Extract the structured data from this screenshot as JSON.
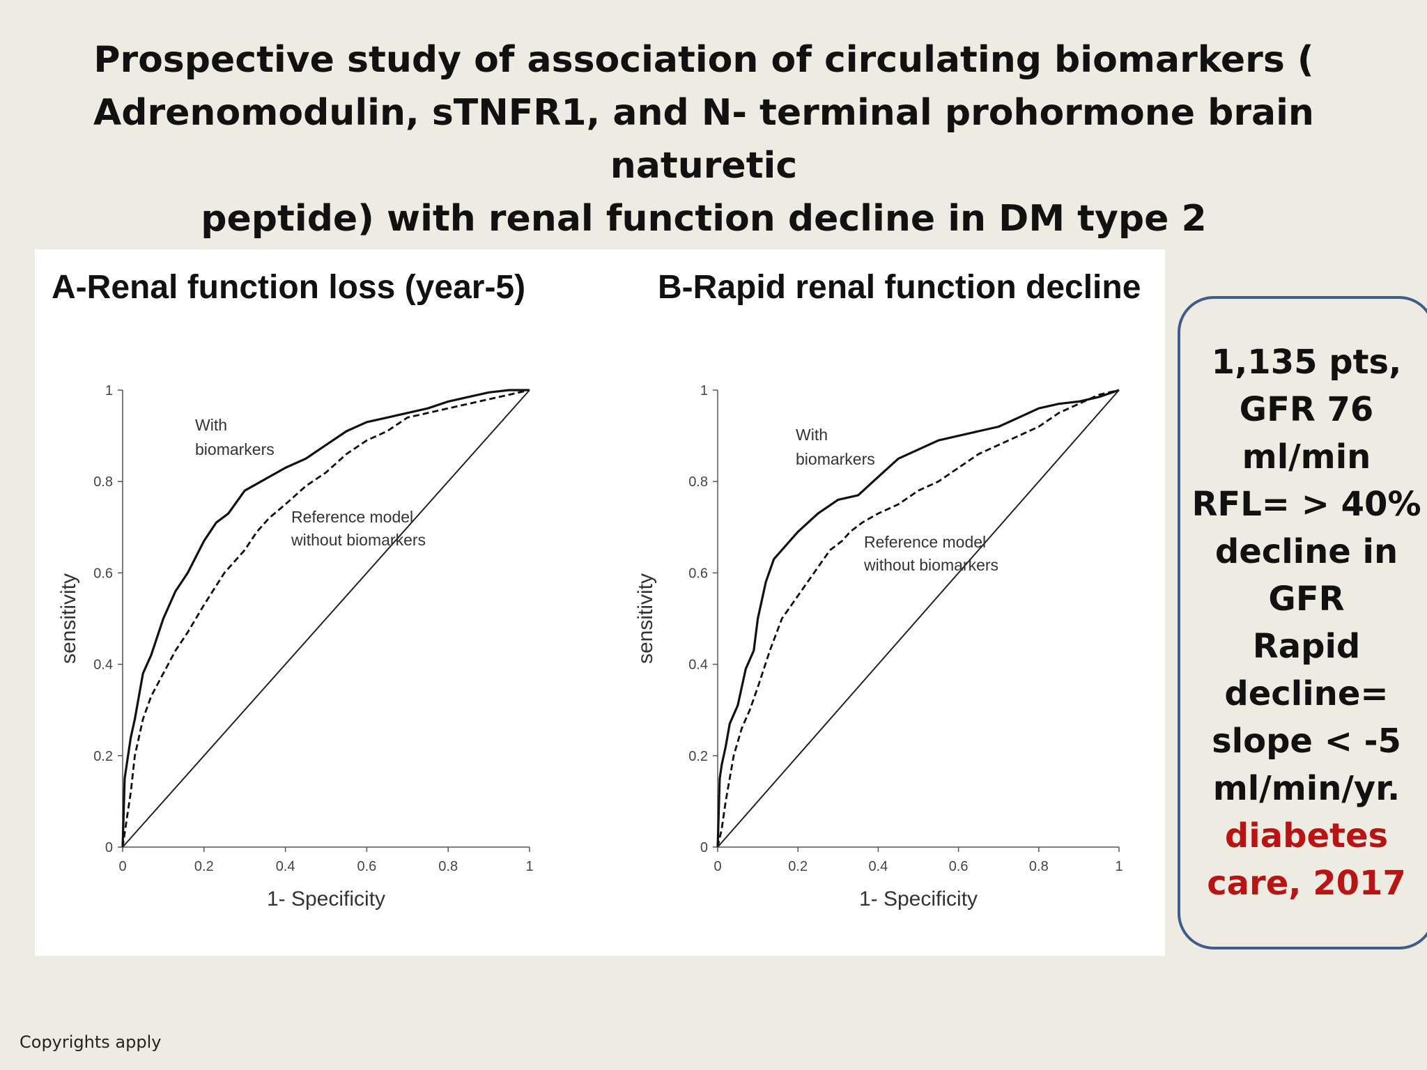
{
  "title_lines": [
    "Prospective study of association of circulating biomarkers (",
    "Adrenomodulin, sTNFR1, and N- terminal prohormone brain naturetic",
    "peptide) with renal function decline in DM type 2"
  ],
  "info_box": {
    "lines": [
      "1,135 pts,",
      "GFR 76",
      "ml/min",
      "RFL= > 40%",
      "decline in",
      "GFR",
      "Rapid",
      "decline=",
      "slope < -5",
      "ml/min/yr."
    ],
    "citation_lines": [
      "diabetes",
      "care, 2017"
    ],
    "border_color": "#3e5d8a",
    "citation_color": "#b81414"
  },
  "copyright": "Copyrights apply",
  "chart_data": [
    {
      "type": "line",
      "title": "A-Renal function loss (year-5)",
      "xlabel": "1- Specificity",
      "ylabel": "sensitivity",
      "xlim": [
        0,
        1
      ],
      "ylim": [
        0,
        1
      ],
      "xticks": [
        "0",
        "0.2",
        "0.4",
        "0.6",
        "0.8",
        "1"
      ],
      "yticks": [
        "0",
        "0.2",
        "0.4",
        "0.6",
        "0.8",
        "1"
      ],
      "grid": false,
      "annotations": {
        "with": [
          "With",
          "biomarkers"
        ],
        "ref": [
          "Reference model",
          "without  biomarkers"
        ]
      },
      "series": [
        {
          "style": "solid",
          "x": [
            0,
            0.005,
            0.01,
            0.02,
            0.03,
            0.05,
            0.07,
            0.1,
            0.13,
            0.16,
            0.2,
            0.23,
            0.26,
            0.3,
            0.34,
            0.4,
            0.45,
            0.5,
            0.55,
            0.6,
            0.65,
            0.7,
            0.75,
            0.8,
            0.85,
            0.9,
            0.95,
            1
          ],
          "y": [
            0,
            0.15,
            0.18,
            0.24,
            0.28,
            0.38,
            0.42,
            0.5,
            0.56,
            0.6,
            0.67,
            0.71,
            0.73,
            0.78,
            0.8,
            0.83,
            0.85,
            0.88,
            0.91,
            0.93,
            0.94,
            0.95,
            0.96,
            0.975,
            0.985,
            0.995,
            1.0,
            1.0
          ]
        },
        {
          "style": "dashed",
          "x": [
            0,
            0.01,
            0.02,
            0.03,
            0.05,
            0.07,
            0.1,
            0.13,
            0.16,
            0.2,
            0.25,
            0.3,
            0.33,
            0.36,
            0.4,
            0.45,
            0.5,
            0.55,
            0.6,
            0.65,
            0.7,
            0.75,
            0.8,
            0.85,
            0.9,
            0.95,
            1
          ],
          "y": [
            0,
            0.06,
            0.12,
            0.2,
            0.28,
            0.33,
            0.38,
            0.43,
            0.47,
            0.53,
            0.6,
            0.65,
            0.69,
            0.72,
            0.75,
            0.79,
            0.82,
            0.86,
            0.89,
            0.91,
            0.94,
            0.95,
            0.96,
            0.97,
            0.98,
            0.99,
            1.0
          ]
        },
        {
          "style": "reference",
          "x": [
            0,
            1
          ],
          "y": [
            0,
            1
          ]
        }
      ]
    },
    {
      "type": "line",
      "title": "B-Rapid renal function decline",
      "xlabel": "1- Specificity",
      "ylabel": "sensitivity",
      "xlim": [
        0,
        1
      ],
      "ylim": [
        0,
        1
      ],
      "xticks": [
        "0",
        "0.2",
        "0.4",
        "0.6",
        "0.8",
        "1"
      ],
      "yticks": [
        "0",
        "0.2",
        "0.4",
        "0.6",
        "0.8",
        "1"
      ],
      "grid": false,
      "annotations": {
        "with": [
          "With",
          "biomarkers"
        ],
        "ref": [
          "Reference model",
          "without  biomarkers"
        ]
      },
      "series": [
        {
          "style": "solid",
          "x": [
            0,
            0.005,
            0.01,
            0.02,
            0.03,
            0.05,
            0.07,
            0.09,
            0.1,
            0.12,
            0.14,
            0.17,
            0.2,
            0.25,
            0.3,
            0.35,
            0.4,
            0.45,
            0.5,
            0.55,
            0.6,
            0.65,
            0.7,
            0.75,
            0.8,
            0.85,
            0.9,
            0.95,
            1
          ],
          "y": [
            0,
            0.15,
            0.18,
            0.22,
            0.27,
            0.31,
            0.39,
            0.43,
            0.5,
            0.58,
            0.63,
            0.66,
            0.69,
            0.73,
            0.76,
            0.77,
            0.81,
            0.85,
            0.87,
            0.89,
            0.9,
            0.91,
            0.92,
            0.94,
            0.96,
            0.97,
            0.975,
            0.985,
            1.0
          ]
        },
        {
          "style": "dashed",
          "x": [
            0,
            0.01,
            0.02,
            0.04,
            0.06,
            0.08,
            0.1,
            0.13,
            0.16,
            0.2,
            0.24,
            0.28,
            0.31,
            0.33,
            0.36,
            0.4,
            0.45,
            0.5,
            0.55,
            0.6,
            0.65,
            0.7,
            0.75,
            0.8,
            0.85,
            0.9,
            0.95,
            1
          ],
          "y": [
            0,
            0.04,
            0.1,
            0.2,
            0.26,
            0.3,
            0.35,
            0.43,
            0.5,
            0.55,
            0.6,
            0.65,
            0.67,
            0.69,
            0.71,
            0.73,
            0.75,
            0.78,
            0.8,
            0.83,
            0.86,
            0.88,
            0.9,
            0.92,
            0.95,
            0.97,
            0.99,
            1.0
          ]
        },
        {
          "style": "reference",
          "x": [
            0,
            1
          ],
          "y": [
            0,
            1
          ]
        }
      ]
    }
  ]
}
